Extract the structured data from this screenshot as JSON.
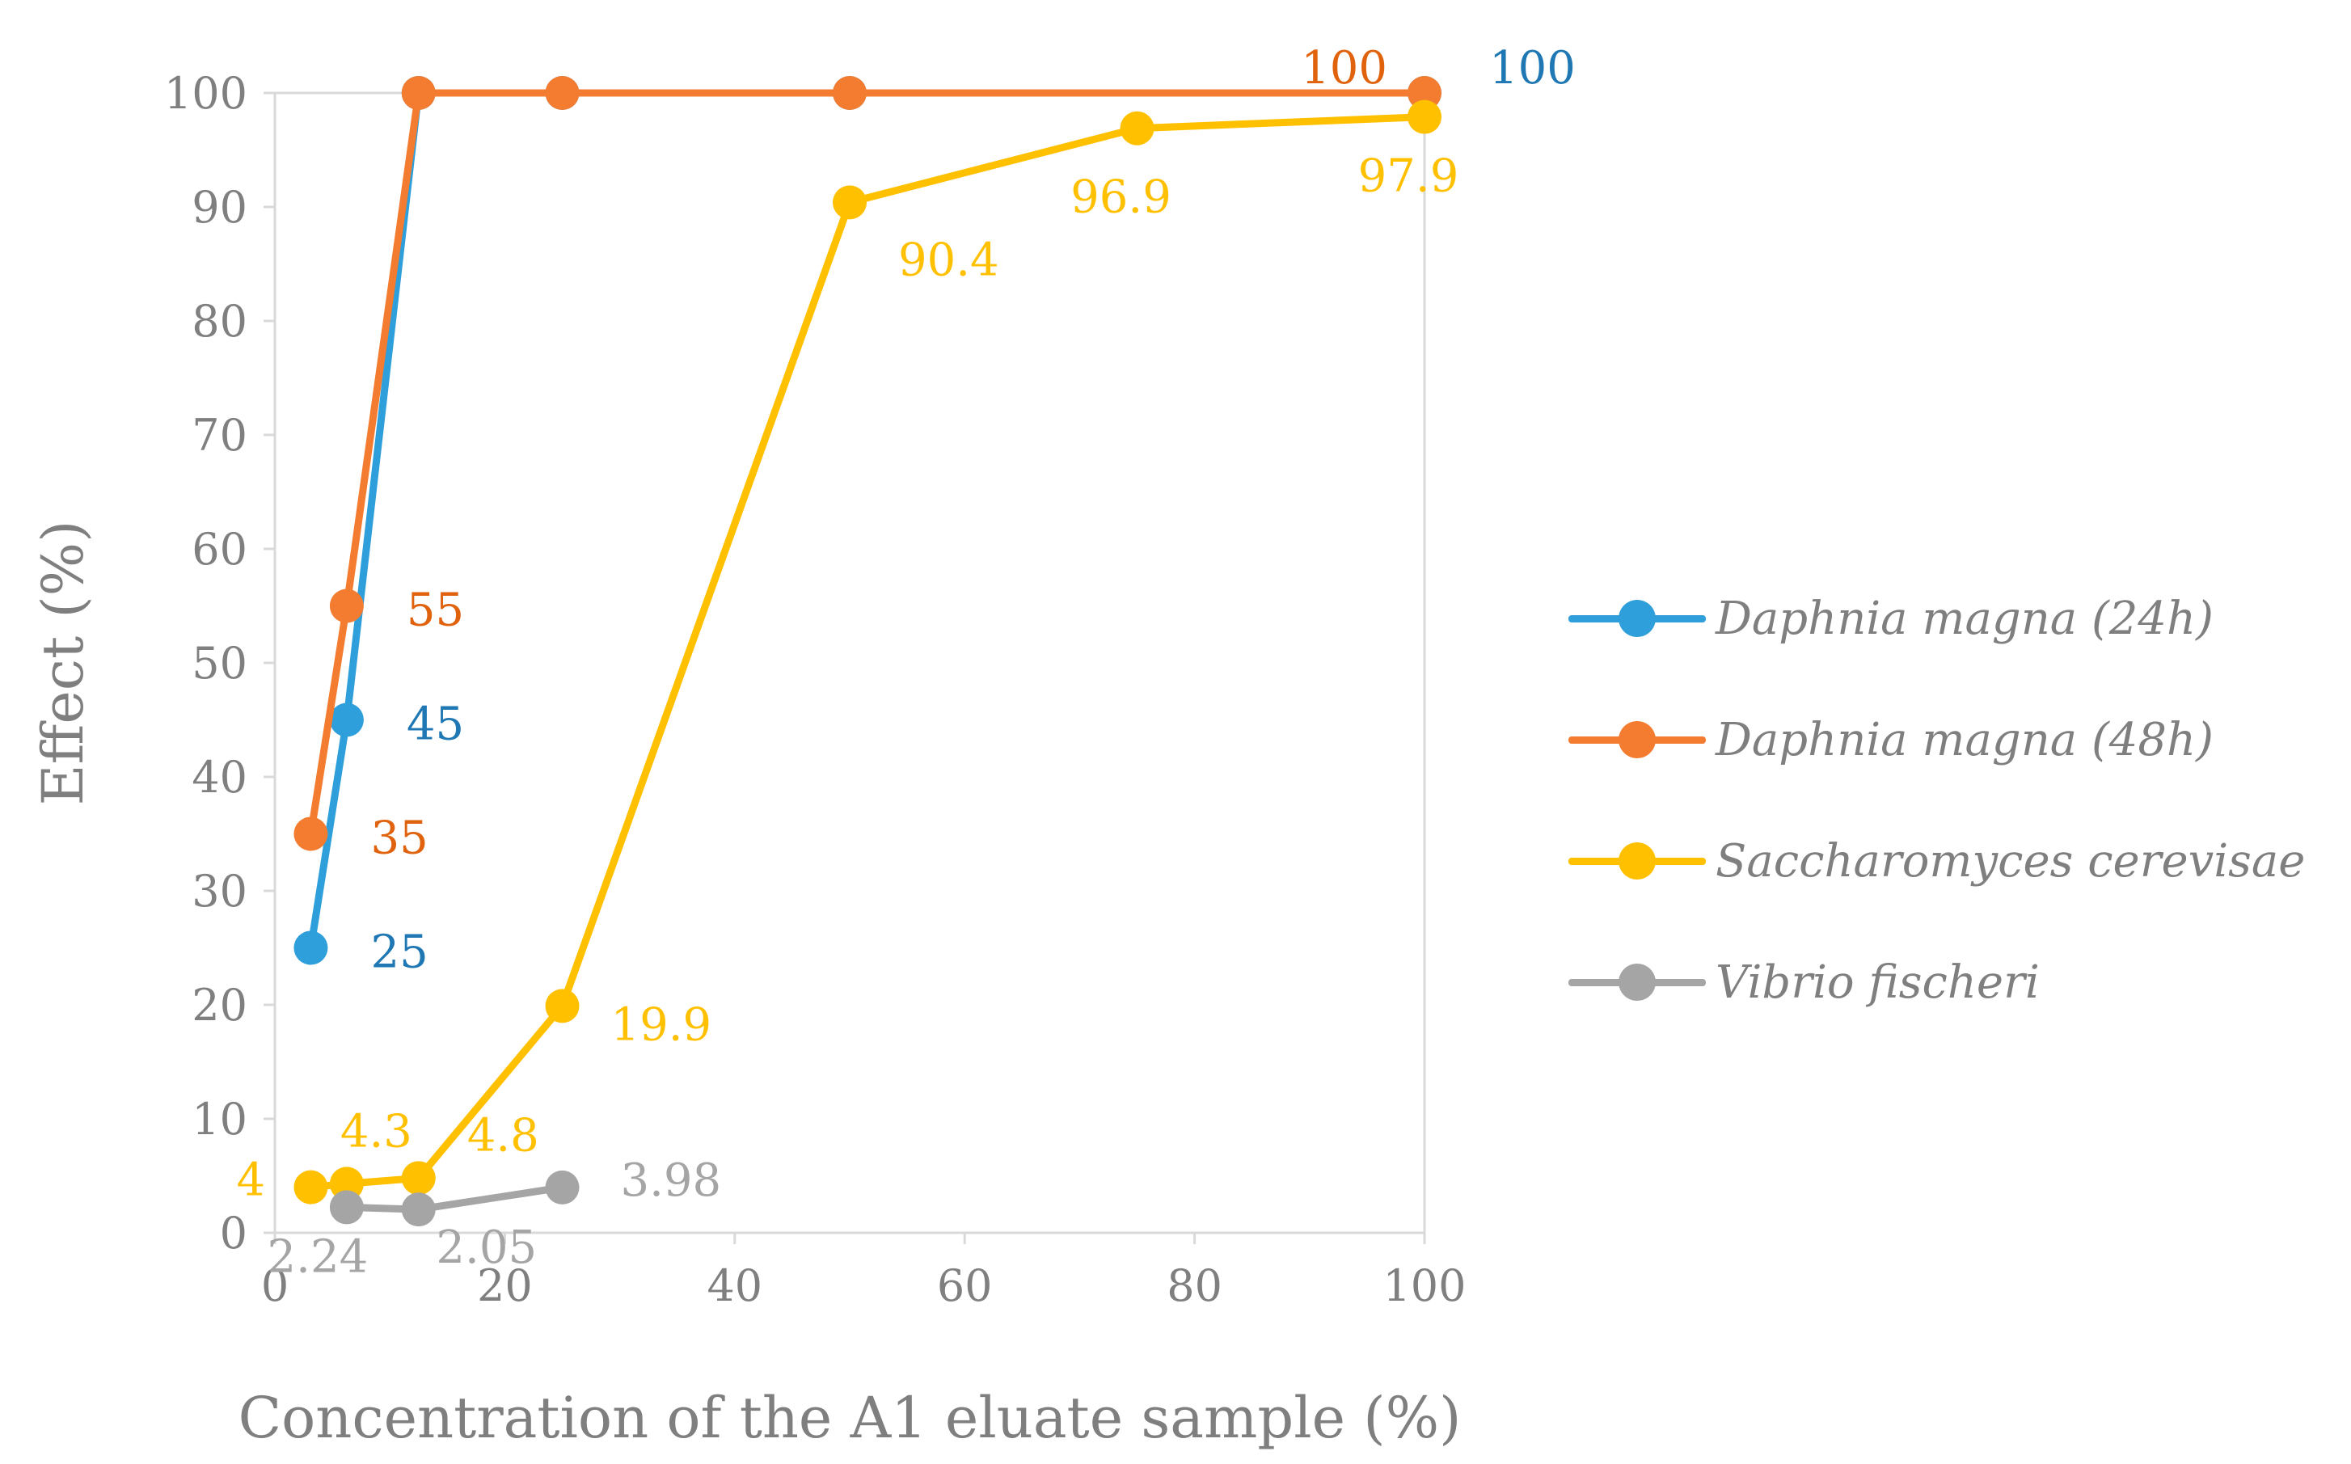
{
  "chart_data": {
    "type": "line",
    "xlabel": "Concentration of the A1 eluate sample (%)",
    "ylabel": "Effect (%)",
    "xlim": [
      0,
      100
    ],
    "ylim": [
      0,
      100
    ],
    "xticks": [
      "0",
      "20",
      "40",
      "60",
      "80",
      "100"
    ],
    "yticks": [
      "0",
      "10",
      "20",
      "30",
      "40",
      "50",
      "60",
      "70",
      "80",
      "90",
      "100"
    ],
    "legend_position": "right",
    "series": [
      {
        "name": "Daphnia magna (24h)",
        "color": "#2E9FDB",
        "label_color": "#1F78B4",
        "x": [
          3.125,
          6.25,
          12.5,
          25,
          50,
          100
        ],
        "y": [
          25,
          45,
          100,
          100,
          100,
          100
        ],
        "labels": [
          "25",
          "45",
          "",
          "",
          "",
          "100"
        ]
      },
      {
        "name": "Daphnia magna (48h)",
        "color": "#F47C30",
        "label_color": "#E0620D",
        "x": [
          3.125,
          6.25,
          12.5,
          25,
          50,
          100
        ],
        "y": [
          35,
          55,
          100,
          100,
          100,
          100
        ],
        "labels": [
          "35",
          "55",
          "",
          "",
          "",
          "100"
        ]
      },
      {
        "name": "Saccharomyces cerevisae",
        "color": "#FFC000",
        "label_color": "#FFC000",
        "x": [
          3.125,
          6.25,
          12.5,
          25,
          50,
          75,
          100
        ],
        "y": [
          4,
          4.3,
          4.8,
          19.9,
          90.4,
          96.9,
          97.9
        ],
        "labels": [
          "4",
          "4.3",
          "4.8",
          "19.9",
          "90.4",
          "96.9",
          "97.9"
        ]
      },
      {
        "name": "Vibrio fischeri",
        "color": "#A5A5A5",
        "label_color": "#A5A5A5",
        "x": [
          6.25,
          12.5,
          25
        ],
        "y": [
          2.24,
          2.05,
          3.98
        ],
        "labels": [
          "2.24",
          "2.05",
          "3.98"
        ]
      }
    ]
  }
}
